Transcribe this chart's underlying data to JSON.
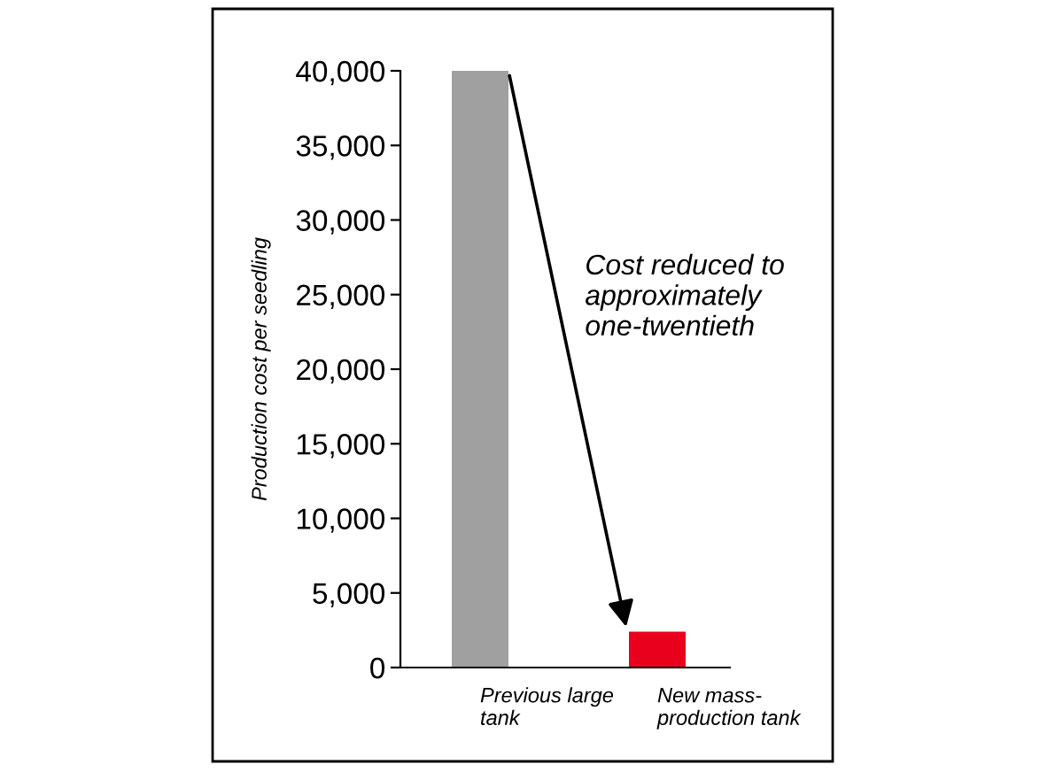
{
  "chart_data": {
    "type": "bar",
    "ylabel": "Production cost per seedling",
    "categories": [
      "Previous large\ntank",
      "New mass-\nproduction tank"
    ],
    "values": [
      40000,
      2400
    ],
    "colors": [
      "#a0a0a0",
      "#e8001c"
    ],
    "ylim": [
      0,
      40000
    ],
    "yticks": [
      {
        "value": 0,
        "label": "0"
      },
      {
        "value": 5000,
        "label": "5,000"
      },
      {
        "value": 10000,
        "label": "10,000"
      },
      {
        "value": 15000,
        "label": "15,000"
      },
      {
        "value": 20000,
        "label": "20,000"
      },
      {
        "value": 25000,
        "label": "25,000"
      },
      {
        "value": 30000,
        "label": "30,000"
      },
      {
        "value": 35000,
        "label": "35,000"
      },
      {
        "value": 40000,
        "label": "40,000"
      }
    ],
    "annotations": [
      "Cost reduced to\napproximately\none-twentieth"
    ],
    "grid": false,
    "legend": false
  }
}
